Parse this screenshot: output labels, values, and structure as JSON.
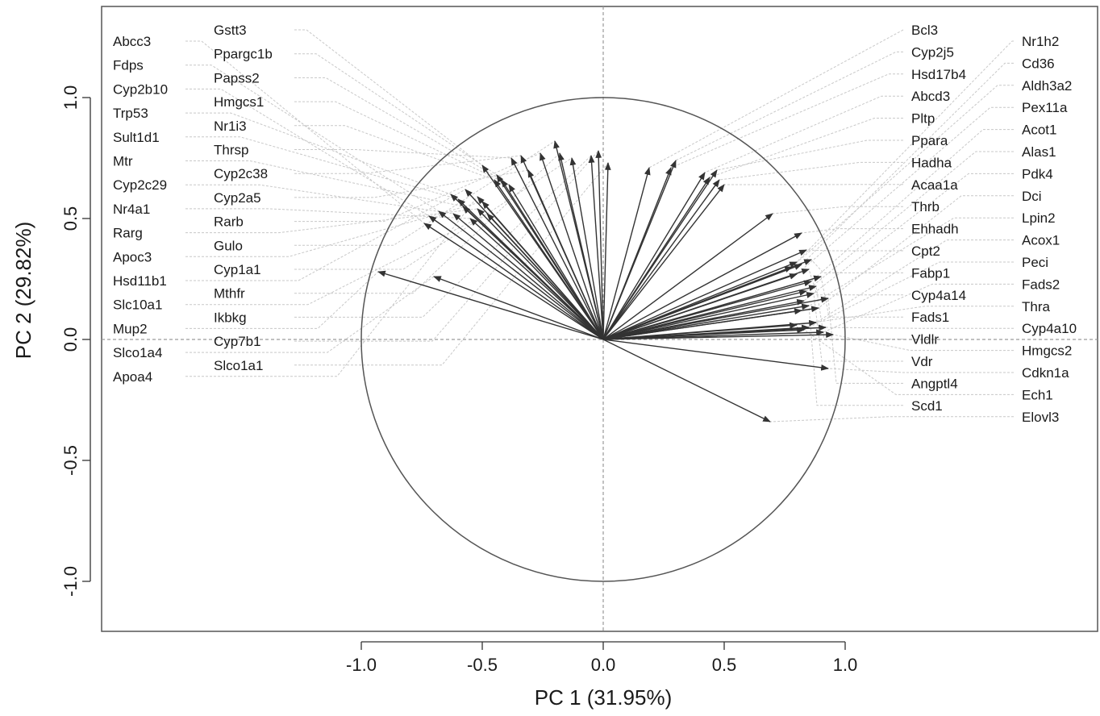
{
  "chart_data": {
    "type": "scatter",
    "subtype": "correlation-circle",
    "title": "",
    "xlabel": "PC 1 (31.95%)",
    "ylabel": "PC 2 (29.82%)",
    "xlim": [
      -2.1,
      2.05
    ],
    "ylim": [
      -1.2,
      1.33
    ],
    "xticks": [
      -1.0,
      -0.5,
      0.0,
      0.5,
      1.0
    ],
    "yticks": [
      -1.0,
      -0.5,
      0.0,
      0.5,
      1.0
    ],
    "xtick_labels": [
      "-1.0",
      "-0.5",
      "0.0",
      "0.5",
      "1.0"
    ],
    "ytick_labels": [
      "-1.0",
      "-0.5",
      "0.0",
      "0.5",
      "1.0"
    ],
    "unit_circle": true,
    "reference_lines": {
      "x": 0,
      "y": 0
    },
    "grid": false,
    "colors": {
      "arrow": "#333333",
      "leader": "#c8c8c8",
      "circle": "#555555",
      "frame": "#555555"
    },
    "label_columns": {
      "left_outer": [
        "Abcc3",
        "Fdps",
        "Cyp2b10",
        "Trp53",
        "Sult1d1",
        "Mtr",
        "Cyp2c29",
        "Nr4a1",
        "Rarg",
        "Apoc3",
        "Hsd11b1",
        "Slc10a1",
        "Mup2",
        "Slco1a4",
        "Apoa4"
      ],
      "left_inner": [
        "Gstt3",
        "Ppargc1b",
        "Papss2",
        "Hmgcs1",
        "Nr1i3",
        "Thrsp",
        "Cyp2c38",
        "Cyp2a5",
        "Rarb",
        "Gulo",
        "Cyp1a1",
        "Mthfr",
        "Ikbkg",
        "Cyp7b1",
        "Slco1a1"
      ],
      "right_inner": [
        "Bcl3",
        "Cyp2j5",
        "Hsd17b4",
        "Abcd3",
        "Pltp",
        "Ppara",
        "Hadha",
        "Acaa1a",
        "Thrb",
        "Ehhadh",
        "Cpt2",
        "Fabp1",
        "Cyp4a14",
        "Fads1",
        "Vldlr",
        "Vdr",
        "Angptl4",
        "Scd1"
      ],
      "right_outer": [
        "Nr1h2",
        "Cd36",
        "Aldh3a2",
        "Pex11a",
        "Acot1",
        "Alas1",
        "Pdk4",
        "Dci",
        "Lpin2",
        "Acox1",
        "Peci",
        "Fads2",
        "Thra",
        "Cyp4a10",
        "Hmgcs2",
        "Cdkn1a",
        "Ech1",
        "Elovl3"
      ]
    },
    "points": [
      {
        "name": "Abcc3",
        "x": -0.74,
        "y": 0.48
      },
      {
        "name": "Fdps",
        "x": -0.68,
        "y": 0.53
      },
      {
        "name": "Cyp2b10",
        "x": -0.72,
        "y": 0.51
      },
      {
        "name": "Trp53",
        "x": -0.63,
        "y": 0.6
      },
      {
        "name": "Sult1d1",
        "x": -0.6,
        "y": 0.58
      },
      {
        "name": "Mtr",
        "x": -0.58,
        "y": 0.55
      },
      {
        "name": "Cyp2c29",
        "x": -0.62,
        "y": 0.52
      },
      {
        "name": "Nr4a1",
        "x": -0.55,
        "y": 0.5
      },
      {
        "name": "Rarg",
        "x": -0.52,
        "y": 0.54
      },
      {
        "name": "Apoc3",
        "x": -0.5,
        "y": 0.57
      },
      {
        "name": "Hsd11b1",
        "x": -0.57,
        "y": 0.62
      },
      {
        "name": "Slc10a1",
        "x": -0.48,
        "y": 0.52
      },
      {
        "name": "Mup2",
        "x": -0.93,
        "y": 0.28
      },
      {
        "name": "Slco1a4",
        "x": -0.7,
        "y": 0.26
      },
      {
        "name": "Apoa4",
        "x": -0.52,
        "y": 0.59
      },
      {
        "name": "Gstt3",
        "x": -0.5,
        "y": 0.72
      },
      {
        "name": "Ppargc1b",
        "x": -0.44,
        "y": 0.68
      },
      {
        "name": "Papss2",
        "x": -0.42,
        "y": 0.66
      },
      {
        "name": "Hmgcs1",
        "x": -0.39,
        "y": 0.64
      },
      {
        "name": "Nr1i3",
        "x": -0.45,
        "y": 0.66
      },
      {
        "name": "Thrsp",
        "x": -0.38,
        "y": 0.75
      },
      {
        "name": "Cyp2c38",
        "x": -0.34,
        "y": 0.76
      },
      {
        "name": "Cyp2a5",
        "x": -0.31,
        "y": 0.7
      },
      {
        "name": "Rarb",
        "x": -0.26,
        "y": 0.77
      },
      {
        "name": "Gulo",
        "x": -0.2,
        "y": 0.82
      },
      {
        "name": "Cyp1a1",
        "x": -0.13,
        "y": 0.75
      },
      {
        "name": "Mthfr",
        "x": -0.18,
        "y": 0.77
      },
      {
        "name": "Ikbkg",
        "x": -0.05,
        "y": 0.76
      },
      {
        "name": "Cyp7b1",
        "x": -0.02,
        "y": 0.78
      },
      {
        "name": "Slco1a1",
        "x": 0.02,
        "y": 0.73
      },
      {
        "name": "Bcl3",
        "x": 0.19,
        "y": 0.71
      },
      {
        "name": "Cyp2j5",
        "x": 0.3,
        "y": 0.74
      },
      {
        "name": "Hsd17b4",
        "x": 0.28,
        "y": 0.71
      },
      {
        "name": "Abcd3",
        "x": 0.42,
        "y": 0.69
      },
      {
        "name": "Pltp",
        "x": 0.44,
        "y": 0.67
      },
      {
        "name": "Ppara",
        "x": 0.47,
        "y": 0.7
      },
      {
        "name": "Hadha",
        "x": 0.48,
        "y": 0.66
      },
      {
        "name": "Acaa1a",
        "x": 0.5,
        "y": 0.64
      },
      {
        "name": "Thrb",
        "x": 0.7,
        "y": 0.52
      },
      {
        "name": "Ehhadh",
        "x": 0.82,
        "y": 0.44
      },
      {
        "name": "Cpt2",
        "x": 0.84,
        "y": 0.37
      },
      {
        "name": "Fabp1",
        "x": 0.86,
        "y": 0.33
      },
      {
        "name": "Cyp4a14",
        "x": 0.85,
        "y": 0.29
      },
      {
        "name": "Fads1",
        "x": 0.9,
        "y": 0.26
      },
      {
        "name": "Vldlr",
        "x": 0.88,
        "y": 0.22
      },
      {
        "name": "Vdr",
        "x": 0.87,
        "y": 0.19
      },
      {
        "name": "Angptl4",
        "x": 0.93,
        "y": 0.17
      },
      {
        "name": "Scd1",
        "x": 0.85,
        "y": 0.14
      },
      {
        "name": "Nr1h2",
        "x": 0.8,
        "y": 0.32
      },
      {
        "name": "Cd36",
        "x": 0.82,
        "y": 0.31
      },
      {
        "name": "Aldh3a2",
        "x": 0.78,
        "y": 0.3
      },
      {
        "name": "Pex11a",
        "x": 0.8,
        "y": 0.27
      },
      {
        "name": "Acot1",
        "x": 0.86,
        "y": 0.24
      },
      {
        "name": "Alas1",
        "x": 0.84,
        "y": 0.2
      },
      {
        "name": "Pdk4",
        "x": 0.83,
        "y": 0.16
      },
      {
        "name": "Dci",
        "x": 0.89,
        "y": 0.13
      },
      {
        "name": "Lpin2",
        "x": 0.82,
        "y": 0.12
      },
      {
        "name": "Acox1",
        "x": 0.88,
        "y": 0.07
      },
      {
        "name": "Peci",
        "x": 0.85,
        "y": 0.05
      },
      {
        "name": "Fads2",
        "x": 0.91,
        "y": 0.03
      },
      {
        "name": "Thra",
        "x": 0.8,
        "y": 0.06
      },
      {
        "name": "Cyp4a10",
        "x": 0.92,
        "y": 0.05
      },
      {
        "name": "Hmgcs2",
        "x": 0.95,
        "y": 0.02
      },
      {
        "name": "Cdkn1a",
        "x": 0.93,
        "y": -0.12
      },
      {
        "name": "Ech1",
        "x": 0.83,
        "y": 0.04
      },
      {
        "name": "Elovl3",
        "x": 0.69,
        "y": -0.34
      }
    ]
  }
}
